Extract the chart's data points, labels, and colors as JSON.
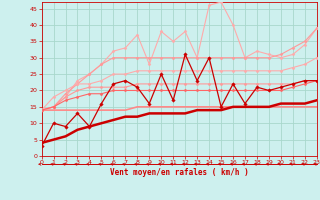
{
  "title": "",
  "xlabel": "Vent moyen/en rafales ( km/h )",
  "ylabel": "",
  "xlim": [
    0,
    23
  ],
  "ylim": [
    0,
    47
  ],
  "yticks": [
    0,
    5,
    10,
    15,
    20,
    25,
    30,
    35,
    40,
    45
  ],
  "xticks": [
    0,
    1,
    2,
    3,
    4,
    5,
    6,
    7,
    8,
    9,
    10,
    11,
    12,
    13,
    14,
    15,
    16,
    17,
    18,
    19,
    20,
    21,
    22,
    23
  ],
  "bg_color": "#cdf0ee",
  "grid_color": "#a8d8cc",
  "lines": [
    {
      "x": [
        0,
        1,
        2,
        3,
        4,
        5,
        6,
        7,
        8,
        9,
        10,
        11,
        12,
        13,
        14,
        15,
        16,
        17,
        18,
        19,
        20,
        21,
        22,
        23
      ],
      "y": [
        3,
        10,
        9,
        13,
        9,
        16,
        22,
        23,
        21,
        16,
        25,
        17,
        31,
        23,
        30,
        15,
        22,
        16,
        21,
        20,
        21,
        22,
        23,
        23
      ],
      "color": "#cc0000",
      "lw": 0.9,
      "marker": "D",
      "ms": 1.8,
      "zorder": 5
    },
    {
      "x": [
        0,
        1,
        2,
        3,
        4,
        5,
        6,
        7,
        8,
        9,
        10,
        11,
        12,
        13,
        14,
        15,
        16,
        17,
        18,
        19,
        20,
        21,
        22,
        23
      ],
      "y": [
        14,
        15,
        18,
        23,
        25,
        28,
        32,
        33,
        37,
        28,
        38,
        35,
        38,
        30,
        46,
        47,
        40,
        30,
        32,
        31,
        30,
        31,
        34,
        39
      ],
      "color": "#ffaaaa",
      "lw": 0.8,
      "marker": "D",
      "ms": 1.5,
      "zorder": 3
    },
    {
      "x": [
        0,
        1,
        2,
        3,
        4,
        5,
        6,
        7,
        8,
        9,
        10,
        11,
        12,
        13,
        14,
        15,
        16,
        17,
        18,
        19,
        20,
        21,
        22,
        23
      ],
      "y": [
        14,
        15,
        19,
        22,
        25,
        28,
        30,
        30,
        30,
        30,
        30,
        30,
        30,
        30,
        30,
        30,
        30,
        30,
        30,
        30,
        31,
        33,
        35,
        39
      ],
      "color": "#ff9999",
      "lw": 0.8,
      "marker": "D",
      "ms": 1.5,
      "zorder": 3
    },
    {
      "x": [
        0,
        1,
        2,
        3,
        4,
        5,
        6,
        7,
        8,
        9,
        10,
        11,
        12,
        13,
        14,
        15,
        16,
        17,
        18,
        19,
        20,
        21,
        22,
        23
      ],
      "y": [
        14,
        18,
        20,
        22,
        22,
        23,
        25,
        25,
        26,
        26,
        26,
        26,
        26,
        26,
        26,
        26,
        26,
        26,
        26,
        26,
        26,
        27,
        28,
        30
      ],
      "color": "#ffaaaa",
      "lw": 0.8,
      "marker": "D",
      "ms": 1.5,
      "zorder": 3
    },
    {
      "x": [
        0,
        1,
        2,
        3,
        4,
        5,
        6,
        7,
        8,
        9,
        10,
        11,
        12,
        13,
        14,
        15,
        16,
        17,
        18,
        19,
        20,
        21,
        22,
        23
      ],
      "y": [
        14,
        15,
        17,
        18,
        19,
        19,
        20,
        20,
        20,
        20,
        20,
        20,
        20,
        20,
        20,
        20,
        20,
        20,
        20,
        20,
        20,
        21,
        22,
        23
      ],
      "color": "#ff6666",
      "lw": 0.8,
      "marker": "D",
      "ms": 1.5,
      "zorder": 4
    },
    {
      "x": [
        0,
        1,
        2,
        3,
        4,
        5,
        6,
        7,
        8,
        9,
        10,
        11,
        12,
        13,
        14,
        15,
        16,
        17,
        18,
        19,
        20,
        21,
        22,
        23
      ],
      "y": [
        14,
        15,
        18,
        20,
        21,
        21,
        21,
        21,
        22,
        22,
        22,
        22,
        22,
        22,
        22,
        22,
        22,
        22,
        22,
        22,
        22,
        22,
        23,
        23
      ],
      "color": "#ff9999",
      "lw": 0.8,
      "marker": "D",
      "ms": 1.5,
      "zorder": 3
    },
    {
      "x": [
        0,
        1,
        2,
        3,
        4,
        5,
        6,
        7,
        8,
        9,
        10,
        11,
        12,
        13,
        14,
        15,
        16,
        17,
        18,
        19,
        20,
        21,
        22,
        23
      ],
      "y": [
        4,
        5,
        6,
        8,
        9,
        10,
        11,
        12,
        12,
        13,
        13,
        13,
        13,
        14,
        14,
        14,
        15,
        15,
        15,
        15,
        16,
        16,
        16,
        17
      ],
      "color": "#cc0000",
      "lw": 1.8,
      "marker": null,
      "ms": 0,
      "zorder": 6
    },
    {
      "x": [
        0,
        1,
        2,
        3,
        4,
        5,
        6,
        7,
        8,
        9,
        10,
        11,
        12,
        13,
        14,
        15,
        16,
        17,
        18,
        19,
        20,
        21,
        22,
        23
      ],
      "y": [
        14,
        14,
        14,
        14,
        14,
        14,
        14,
        14,
        15,
        15,
        15,
        15,
        15,
        15,
        15,
        15,
        15,
        15,
        15,
        15,
        15,
        15,
        15,
        15
      ],
      "color": "#ff8888",
      "lw": 1.2,
      "marker": null,
      "ms": 0,
      "zorder": 2
    }
  ],
  "arrow_color": "#cc0000",
  "xlabel_color": "#cc0000",
  "tick_color": "#cc0000",
  "axis_color": "#cc0000"
}
